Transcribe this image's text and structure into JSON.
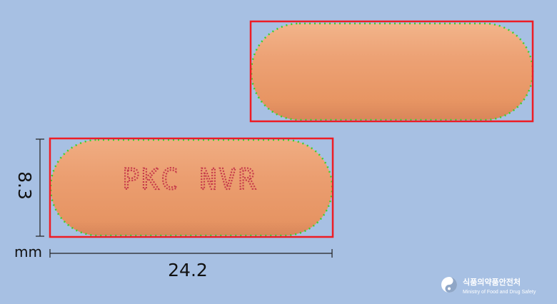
{
  "pill": {
    "imprint": "PKC NVR",
    "body_color": "#e99a6a",
    "imprint_color": "#c63a4a"
  },
  "annotation": {
    "box_color": "#ee1c24",
    "contour_color": "#3ad12b"
  },
  "dimensions": {
    "height_value": "8.3",
    "width_value": "24.2",
    "unit": "mm"
  },
  "logo": {
    "korean": "식품의약품안전처",
    "english": "Ministry of Food and Drug Safety",
    "icon": "taegeuk-emblem-icon"
  }
}
